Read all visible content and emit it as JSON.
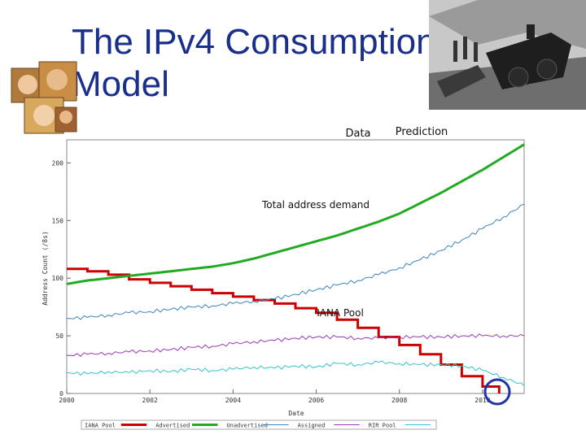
{
  "slide": {
    "title": "The IPv4 Consumption\nModel",
    "images": [
      "portraits-collage",
      "train-wreck-photo"
    ]
  },
  "colors": {
    "title": "#1a2e8c",
    "iana": "#cc0000",
    "advertised": "#22aa22",
    "unadvertised": "#3a86c0",
    "assigned": "#9a3ab8",
    "rir": "#33c4cc",
    "highlight_circle": "#2233aa"
  },
  "chart_data": {
    "type": "line",
    "xlabel": "Date",
    "ylabel": "Address Count (/8s)",
    "xlim": [
      2000,
      2011
    ],
    "ylim": [
      0,
      220
    ],
    "x_ticks": [
      "2000",
      "2002",
      "2004",
      "2006",
      "2008",
      "2010"
    ],
    "y_ticks": [
      "0",
      "50",
      "100",
      "150",
      "200"
    ],
    "grid": false,
    "legend_position": "bottom",
    "annotations": {
      "data": "Data",
      "prediction": "Prediction",
      "total_demand": "Total address demand",
      "iana_pool": "IANA Pool"
    },
    "series": [
      {
        "name": "IANA Pool",
        "color": "#cc0000",
        "x": [
          2000,
          2000.5,
          2001,
          2001.5,
          2002,
          2002.5,
          2003,
          2003.5,
          2004,
          2004.5,
          2005,
          2005.5,
          2006,
          2006.5,
          2007,
          2007.5,
          2008,
          2008.5,
          2009,
          2009.5,
          2010,
          2010.4
        ],
        "y": [
          108,
          106,
          103,
          99,
          96,
          93,
          90,
          87,
          84,
          81,
          78,
          74,
          70,
          64,
          57,
          49,
          42,
          34,
          25,
          15,
          6,
          0
        ]
      },
      {
        "name": "Advertised",
        "color": "#22aa22",
        "x": [
          2000,
          2000.5,
          2001,
          2001.5,
          2002,
          2002.5,
          2003,
          2003.5,
          2004,
          2004.5,
          2005,
          2005.5,
          2006,
          2006.5,
          2007,
          2007.5,
          2008,
          2008.5,
          2009,
          2009.5,
          2010,
          2010.5,
          2011
        ],
        "y": [
          95,
          98,
          100,
          102,
          104,
          106,
          108,
          110,
          113,
          117,
          122,
          127,
          132,
          137,
          143,
          149,
          156,
          165,
          174,
          184,
          194,
          205,
          216
        ]
      },
      {
        "name": "Unadvertised",
        "color": "#3a86c0",
        "x": [
          2000,
          2000.5,
          2001,
          2001.5,
          2002,
          2002.5,
          2003,
          2003.5,
          2004,
          2004.5,
          2005,
          2005.5,
          2006,
          2006.5,
          2007,
          2007.5,
          2008,
          2008.5,
          2009,
          2009.5,
          2010,
          2010.5,
          2011
        ],
        "y": [
          65,
          66,
          68,
          70,
          71,
          73,
          75,
          76,
          78,
          80,
          82,
          86,
          90,
          94,
          98,
          103,
          109,
          116,
          124,
          133,
          143,
          153,
          164
        ]
      },
      {
        "name": "Assigned",
        "color": "#9a3ab8",
        "x": [
          2000,
          2000.5,
          2001,
          2001.5,
          2002,
          2002.5,
          2003,
          2003.5,
          2004,
          2004.5,
          2005,
          2005.5,
          2006,
          2006.5,
          2007,
          2007.5,
          2008,
          2008.5,
          2009,
          2009.5,
          2010,
          2010.5,
          2011
        ],
        "y": [
          33,
          34,
          35,
          36,
          37,
          38,
          40,
          41,
          43,
          45,
          46,
          48,
          49,
          49,
          48,
          48,
          49,
          49,
          49,
          50,
          50,
          50,
          50
        ]
      },
      {
        "name": "RIR Pool",
        "color": "#33c4cc",
        "x": [
          2000,
          2000.5,
          2001,
          2001.5,
          2002,
          2002.5,
          2003,
          2003.5,
          2004,
          2004.5,
          2005,
          2005.5,
          2006,
          2006.5,
          2007,
          2007.5,
          2008,
          2008.5,
          2009,
          2009.5,
          2010,
          2010.5,
          2011
        ],
        "y": [
          18,
          17,
          19,
          18,
          20,
          19,
          21,
          20,
          21,
          23,
          22,
          24,
          23,
          26,
          25,
          27,
          26,
          25,
          25,
          24,
          20,
          14,
          7
        ]
      }
    ]
  }
}
